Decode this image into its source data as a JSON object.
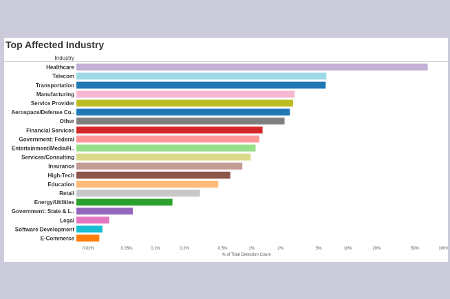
{
  "chart_data": {
    "type": "bar",
    "orientation": "horizontal",
    "title": "Top Affected Industry",
    "row_header": "Industry",
    "xlabel": "% of Total Detection Count",
    "xscale": "log",
    "xlim": [
      0.015,
      100
    ],
    "grid": false,
    "categories": [
      "Healthcare",
      "Telecom",
      "Transportation",
      "Manufacturing",
      "Service Provider",
      "Aerospace/Defense Co..",
      "Other",
      "Financial Services",
      "Government: Federal",
      "Entertainment/Media/H..",
      "Services/Consulting",
      "Insurance",
      "High-Tech",
      "Education",
      "Retail",
      "Energy/Utilities",
      "Government: State & L..",
      "Legal",
      "Software Development",
      "E-Commerce"
    ],
    "values": [
      68,
      6.0,
      5.9,
      2.8,
      2.7,
      2.5,
      2.2,
      1.3,
      1.2,
      1.1,
      0.98,
      0.8,
      0.6,
      0.45,
      0.29,
      0.15,
      0.058,
      0.033,
      0.028,
      0.026
    ],
    "colors": [
      "#c5b0d5",
      "#9edae5",
      "#1f77b4",
      "#f7b6d2",
      "#bcbd22",
      "#1f77b4",
      "#7f7f7f",
      "#d62728",
      "#ff9896",
      "#98df8a",
      "#dbdb8d",
      "#c49c94",
      "#8c564b",
      "#ffbb78",
      "#c7c7c7",
      "#2ca02c",
      "#9467bd",
      "#e377c2",
      "#17becf",
      "#ff7f0e"
    ],
    "ticks": [
      {
        "value": 0.02,
        "label": "0.02%"
      },
      {
        "value": 0.05,
        "label": "0.05%"
      },
      {
        "value": 0.1,
        "label": "0.1%"
      },
      {
        "value": 0.2,
        "label": "0.2%"
      },
      {
        "value": 0.5,
        "label": "0.5%"
      },
      {
        "value": 1,
        "label": "1%"
      },
      {
        "value": 2,
        "label": "2%"
      },
      {
        "value": 5,
        "label": "5%"
      },
      {
        "value": 10,
        "label": "10%"
      },
      {
        "value": 20,
        "label": "20%"
      },
      {
        "value": 50,
        "label": "50%"
      },
      {
        "value": 100,
        "label": "100%"
      }
    ]
  }
}
